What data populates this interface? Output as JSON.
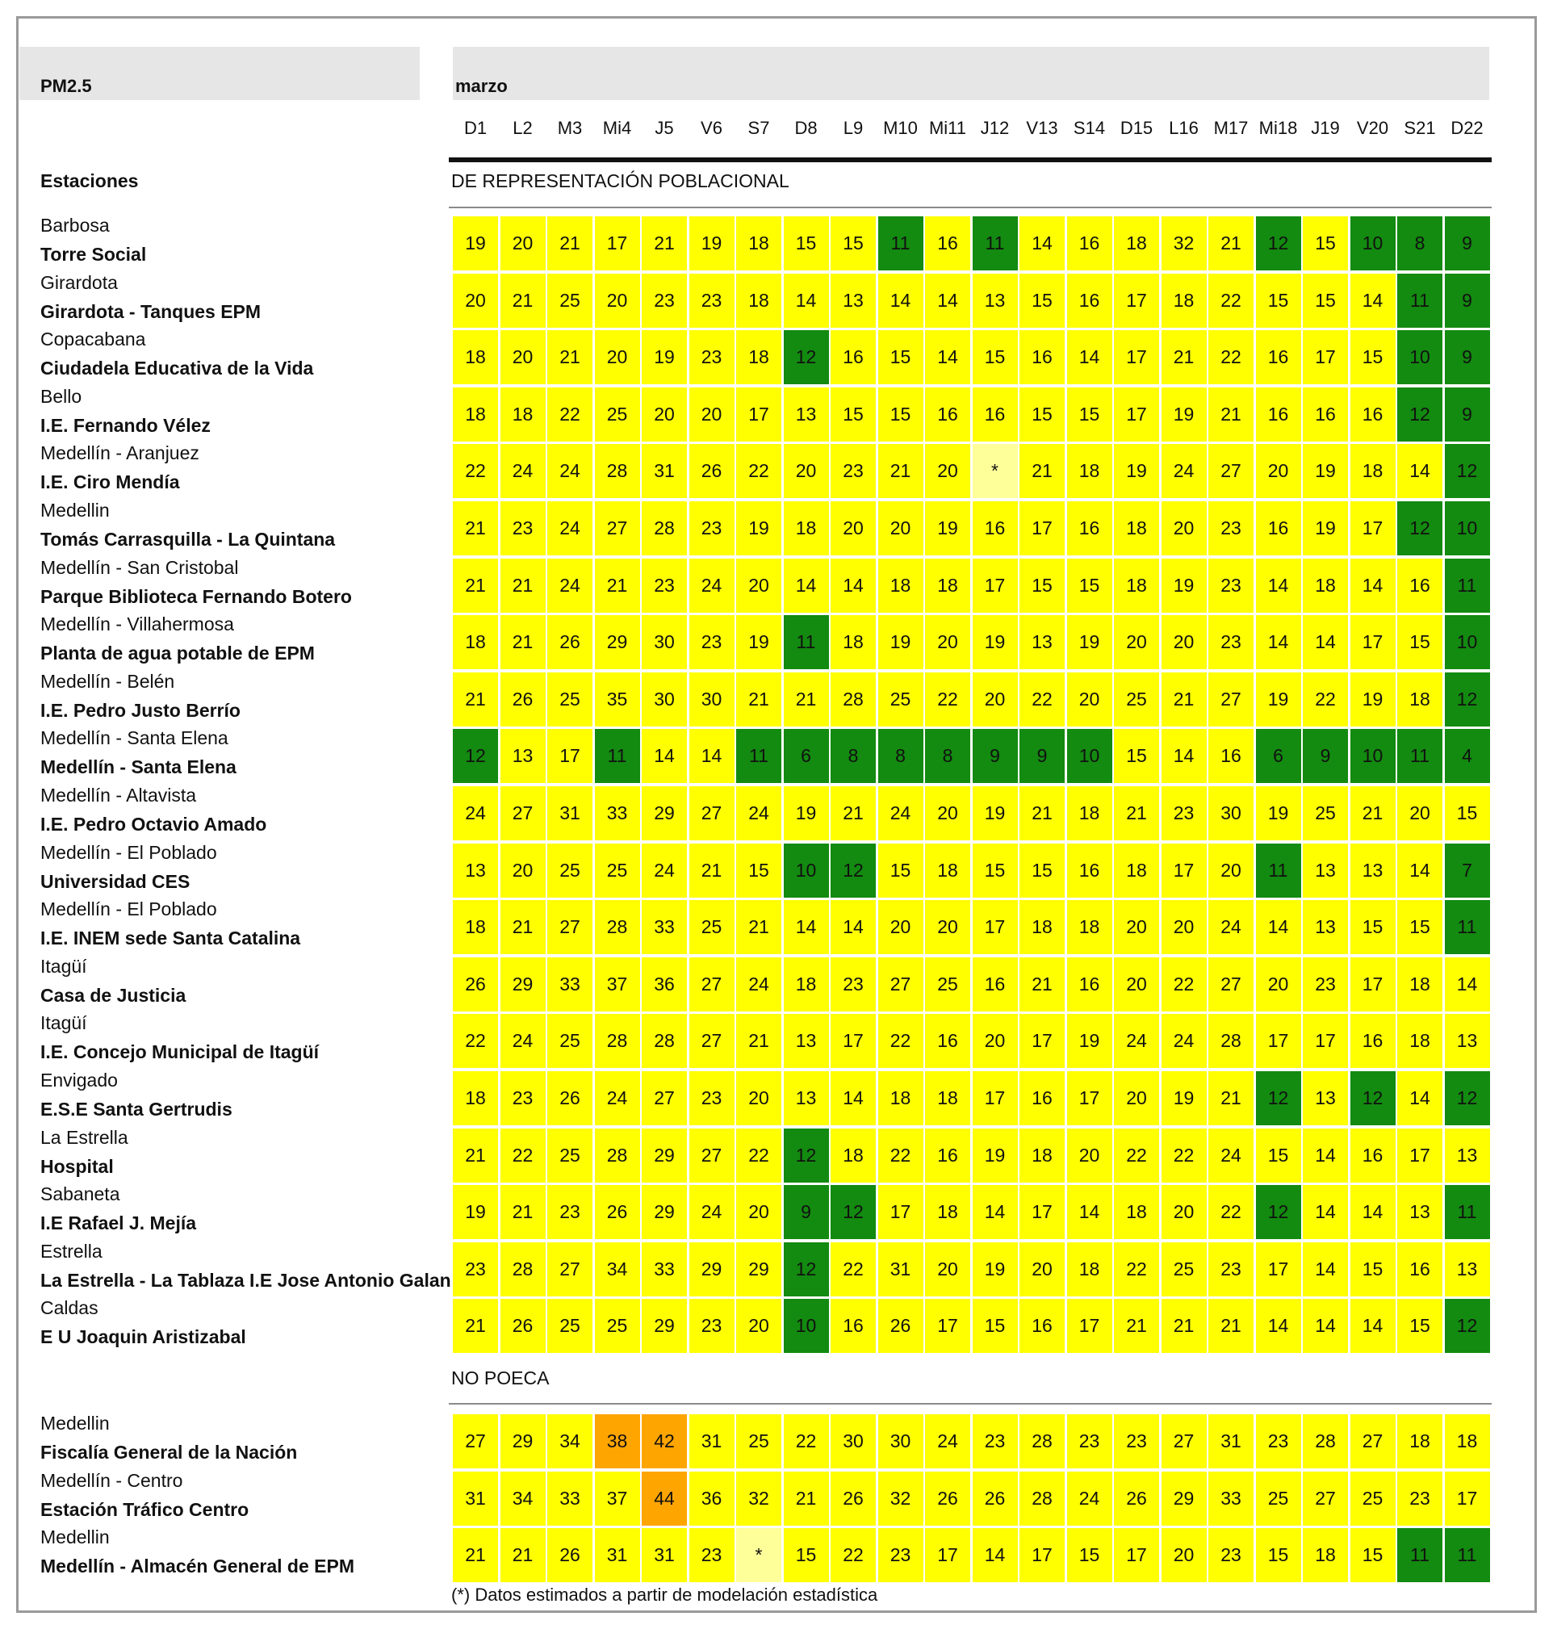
{
  "title": "PM2.5",
  "month": "marzo",
  "stations_header": "Estaciones",
  "days": [
    "D1",
    "L2",
    "M3",
    "Mi4",
    "J5",
    "V6",
    "S7",
    "D8",
    "L9",
    "M10",
    "Mi11",
    "J12",
    "V13",
    "S14",
    "D15",
    "L16",
    "M17",
    "Mi18",
    "J19",
    "V20",
    "S21",
    "D22"
  ],
  "colors": {
    "green": "#138a10",
    "yellow": "#ffff00",
    "orange": "#ffa500",
    "estimated": "#ffff99"
  },
  "missing_symbol": "*",
  "footnote": "(*) Datos estimados a partir de modelación estadística",
  "chart_data": {
    "type": "table",
    "sections": [
      {
        "name": "DE REPRESENTACIÓN POBLACIONAL",
        "rows": [
          {
            "municipality": "Barbosa",
            "station": "Torre Social",
            "values": [
              19,
              20,
              21,
              17,
              21,
              19,
              18,
              15,
              15,
              11,
              16,
              11,
              14,
              16,
              18,
              32,
              21,
              12,
              15,
              10,
              8,
              9
            ]
          },
          {
            "municipality": "Girardota",
            "station": "Girardota - Tanques EPM",
            "values": [
              20,
              21,
              25,
              20,
              23,
              23,
              18,
              14,
              13,
              14,
              14,
              13,
              15,
              16,
              17,
              18,
              22,
              15,
              15,
              14,
              11,
              9
            ]
          },
          {
            "municipality": "Copacabana",
            "station": "Ciudadela Educativa de la Vida",
            "values": [
              18,
              20,
              21,
              20,
              19,
              23,
              18,
              12,
              16,
              15,
              14,
              15,
              16,
              14,
              17,
              21,
              22,
              16,
              17,
              15,
              10,
              9
            ]
          },
          {
            "municipality": "Bello",
            "station": "I.E. Fernando Vélez",
            "values": [
              18,
              18,
              22,
              25,
              20,
              20,
              17,
              13,
              15,
              15,
              16,
              16,
              15,
              15,
              17,
              19,
              21,
              16,
              16,
              16,
              12,
              9
            ]
          },
          {
            "municipality": "Medellín - Aranjuez",
            "station": "I.E. Ciro Mendía",
            "values": [
              22,
              24,
              24,
              28,
              31,
              26,
              22,
              20,
              23,
              21,
              20,
              null,
              21,
              18,
              19,
              24,
              27,
              20,
              19,
              18,
              14,
              12
            ]
          },
          {
            "municipality": "Medellin",
            "station": "Tomás Carrasquilla - La Quintana",
            "values": [
              21,
              23,
              24,
              27,
              28,
              23,
              19,
              18,
              20,
              20,
              19,
              16,
              17,
              16,
              18,
              20,
              23,
              16,
              19,
              17,
              12,
              10
            ]
          },
          {
            "municipality": "Medellín - San Cristobal",
            "station": "Parque Biblioteca Fernando Botero",
            "values": [
              21,
              21,
              24,
              21,
              23,
              24,
              20,
              14,
              14,
              18,
              18,
              17,
              15,
              15,
              18,
              19,
              23,
              14,
              18,
              14,
              16,
              11
            ]
          },
          {
            "municipality": "Medellín - Villahermosa",
            "station": "Planta de agua potable de EPM",
            "values": [
              18,
              21,
              26,
              29,
              30,
              23,
              19,
              11,
              18,
              19,
              20,
              19,
              13,
              19,
              20,
              20,
              23,
              14,
              14,
              17,
              15,
              10
            ]
          },
          {
            "municipality": "Medellín - Belén",
            "station": "I.E. Pedro Justo Berrío",
            "values": [
              21,
              26,
              25,
              35,
              30,
              30,
              21,
              21,
              28,
              25,
              22,
              20,
              22,
              20,
              25,
              21,
              27,
              19,
              22,
              19,
              18,
              12
            ]
          },
          {
            "municipality": "Medellín - Santa Elena",
            "station": "Medellín - Santa Elena",
            "values": [
              12,
              13,
              17,
              11,
              14,
              14,
              11,
              6,
              8,
              8,
              8,
              9,
              9,
              10,
              15,
              14,
              16,
              6,
              9,
              10,
              11,
              4
            ]
          },
          {
            "municipality": "Medellín - Altavista",
            "station": "I.E. Pedro Octavio Amado",
            "values": [
              24,
              27,
              31,
              33,
              29,
              27,
              24,
              19,
              21,
              24,
              20,
              19,
              21,
              18,
              21,
              23,
              30,
              19,
              25,
              21,
              20,
              15
            ]
          },
          {
            "municipality": "Medellín - El Poblado",
            "station": "Universidad CES",
            "values": [
              13,
              20,
              25,
              25,
              24,
              21,
              15,
              10,
              12,
              15,
              18,
              15,
              15,
              16,
              18,
              17,
              20,
              11,
              13,
              13,
              14,
              7
            ]
          },
          {
            "municipality": "Medellín - El Poblado",
            "station": "I.E. INEM sede Santa Catalina",
            "values": [
              18,
              21,
              27,
              28,
              33,
              25,
              21,
              14,
              14,
              20,
              20,
              17,
              18,
              18,
              20,
              20,
              24,
              14,
              13,
              15,
              15,
              11
            ]
          },
          {
            "municipality": "Itagüí",
            "station": "Casa de Justicia",
            "values": [
              26,
              29,
              33,
              37,
              36,
              27,
              24,
              18,
              23,
              27,
              25,
              16,
              21,
              16,
              20,
              22,
              27,
              20,
              23,
              17,
              18,
              14
            ]
          },
          {
            "municipality": "Itagüí",
            "station": "I.E. Concejo Municipal de Itagüí",
            "values": [
              22,
              24,
              25,
              28,
              28,
              27,
              21,
              13,
              17,
              22,
              16,
              20,
              17,
              19,
              24,
              24,
              28,
              17,
              17,
              16,
              18,
              13
            ]
          },
          {
            "municipality": "Envigado",
            "station": "E.S.E Santa Gertrudis",
            "values": [
              18,
              23,
              26,
              24,
              27,
              23,
              20,
              13,
              14,
              18,
              18,
              17,
              16,
              17,
              20,
              19,
              21,
              12,
              13,
              12,
              14,
              12
            ]
          },
          {
            "municipality": "La Estrella",
            "station": "Hospital",
            "values": [
              21,
              22,
              25,
              28,
              29,
              27,
              22,
              12,
              18,
              22,
              16,
              19,
              18,
              20,
              22,
              22,
              24,
              15,
              14,
              16,
              17,
              13
            ]
          },
          {
            "municipality": "Sabaneta",
            "station": "I.E Rafael J. Mejía",
            "values": [
              19,
              21,
              23,
              26,
              29,
              24,
              20,
              9,
              12,
              17,
              18,
              14,
              17,
              14,
              18,
              20,
              22,
              12,
              14,
              14,
              13,
              11
            ]
          },
          {
            "municipality": "Estrella",
            "station": "La Estrella - La Tablaza I.E Jose Antonio Galan",
            "values": [
              23,
              28,
              27,
              34,
              33,
              29,
              29,
              12,
              22,
              31,
              20,
              19,
              20,
              18,
              22,
              25,
              23,
              17,
              14,
              15,
              16,
              13
            ]
          },
          {
            "municipality": "Caldas",
            "station": "E U Joaquin Aristizabal",
            "values": [
              21,
              26,
              25,
              25,
              29,
              23,
              20,
              10,
              16,
              26,
              17,
              15,
              16,
              17,
              21,
              21,
              21,
              14,
              14,
              14,
              15,
              12
            ]
          }
        ]
      },
      {
        "name": "NO POECA",
        "rows": [
          {
            "municipality": "Medellin",
            "station": "Fiscalía General de la Nación",
            "values": [
              27,
              29,
              34,
              38,
              42,
              31,
              25,
              22,
              30,
              30,
              24,
              23,
              28,
              23,
              23,
              27,
              31,
              23,
              28,
              27,
              18,
              18
            ]
          },
          {
            "municipality": "Medellín - Centro",
            "station": "Estación Tráfico Centro",
            "values": [
              31,
              34,
              33,
              37,
              44,
              36,
              32,
              21,
              26,
              32,
              26,
              26,
              28,
              24,
              26,
              29,
              33,
              25,
              27,
              25,
              23,
              17
            ]
          },
          {
            "municipality": "Medellin",
            "station": "Medellín - Almacén General de EPM",
            "values": [
              21,
              21,
              26,
              31,
              31,
              23,
              null,
              15,
              22,
              23,
              17,
              14,
              17,
              15,
              17,
              20,
              23,
              15,
              18,
              15,
              11,
              11
            ]
          }
        ]
      }
    ]
  }
}
